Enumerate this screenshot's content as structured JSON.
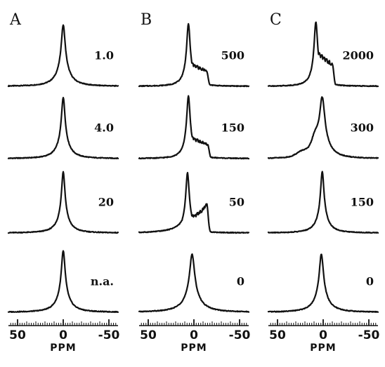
{
  "chart_data": {
    "type": "line",
    "description_note": "",
    "panels": [
      {
        "letter": "A",
        "xlabel": "PPM",
        "xlim": [
          60,
          -60
        ],
        "ticks": [
          {
            "value": 50,
            "label": "50"
          },
          {
            "value": 0,
            "label": "0"
          },
          {
            "value": -50,
            "label": "-50"
          }
        ],
        "spectra": [
          {
            "label": "1.0",
            "shape": "isotropic",
            "center": 0,
            "width": 1.0,
            "height": 0.95
          },
          {
            "label": "4.0",
            "shape": "isotropic",
            "center": 0,
            "width": 0.9,
            "height": 0.95
          },
          {
            "label": "20",
            "shape": "isotropic",
            "center": 0,
            "width": 0.85,
            "height": 0.95
          },
          {
            "label": "n.a.",
            "shape": "isotropic",
            "center": 0,
            "width": 0.95,
            "height": 0.95
          }
        ]
      },
      {
        "letter": "B",
        "xlabel": "PPM",
        "xlim": [
          60,
          -60
        ],
        "ticks": [
          {
            "value": 50,
            "label": "50"
          },
          {
            "value": 0,
            "label": "0"
          },
          {
            "value": -50,
            "label": "-50"
          }
        ],
        "spectra": [
          {
            "label": "500",
            "shape": "powder",
            "center": 6,
            "edge": -14,
            "height": 0.97,
            "shoulder": 0.3
          },
          {
            "label": "150",
            "shape": "powder",
            "center": 6,
            "edge": -15,
            "height": 0.97,
            "shoulder": 0.28
          },
          {
            "label": "50",
            "shape": "powder_dip",
            "center": 7,
            "edge": -14,
            "height": 0.93,
            "shoulder": 0.47
          },
          {
            "label": "0",
            "shape": "isotropic",
            "center": 2,
            "width": 1.25,
            "height": 0.9
          }
        ]
      },
      {
        "letter": "C",
        "xlabel": "PPM",
        "xlim": [
          60,
          -60
        ],
        "ticks": [
          {
            "value": 50,
            "label": "50"
          },
          {
            "value": 0,
            "label": "0"
          },
          {
            "value": -50,
            "label": "-50"
          }
        ],
        "spectra": [
          {
            "label": "2000",
            "shape": "powder",
            "center": 8,
            "edge": -10,
            "height": 1.0,
            "shoulder": 0.42
          },
          {
            "label": "300",
            "shape": "broad_center",
            "center": 1,
            "edge": -8,
            "height": 0.95,
            "shoulder": 0.42
          },
          {
            "label": "150",
            "shape": "isotropic",
            "center": 1,
            "width": 0.85,
            "height": 0.95
          },
          {
            "label": "0",
            "shape": "isotropic",
            "center": 2,
            "width": 1.05,
            "height": 0.9
          }
        ]
      }
    ]
  }
}
